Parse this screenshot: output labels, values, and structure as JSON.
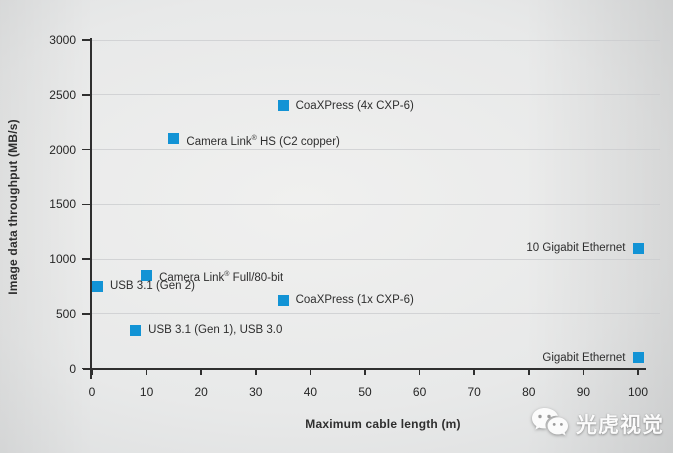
{
  "colors": {
    "marker": "#1293d5",
    "axis": "#2f2f2f",
    "grid": "#c9cbcd",
    "label_text": "#2e2e2e"
  },
  "watermark": {
    "icon": "wechat-icon",
    "text": "光虎视觉"
  },
  "chart_data": {
    "type": "scatter",
    "title": "",
    "xlabel": "Maximum cable length (m)",
    "ylabel": "Image data throughput (MB/s)",
    "xlim": [
      0,
      100
    ],
    "ylim": [
      0,
      3000
    ],
    "xticks": [
      0,
      10,
      20,
      30,
      40,
      50,
      60,
      70,
      80,
      90,
      100
    ],
    "yticks": [
      0,
      500,
      1000,
      1500,
      2000,
      2500,
      3000
    ],
    "grid": "horizontal",
    "legend": "none",
    "marker_shape": "square",
    "points": [
      {
        "label": "CoaXPress (4x CXP-6)",
        "x": 35,
        "y": 2400,
        "label_side": "right"
      },
      {
        "label": "Camera Link® HS (C2 copper)",
        "x": 15,
        "y": 2100,
        "label_side": "right"
      },
      {
        "label": "10 Gigabit Ethernet",
        "x": 100,
        "y": 1100,
        "label_side": "left"
      },
      {
        "label": "Camera Link® Full/80-bit",
        "x": 10,
        "y": 850,
        "label_side": "right"
      },
      {
        "label": "USB 3.1 (Gen 2)",
        "x": 1,
        "y": 750,
        "label_side": "right"
      },
      {
        "label": "CoaXPress (1x CXP-6)",
        "x": 35,
        "y": 625,
        "label_side": "right"
      },
      {
        "label": "USB 3.1 (Gen 1), USB 3.0",
        "x": 8,
        "y": 350,
        "label_side": "right"
      },
      {
        "label": "Gigabit Ethernet",
        "x": 100,
        "y": 100,
        "label_side": "left"
      }
    ]
  }
}
